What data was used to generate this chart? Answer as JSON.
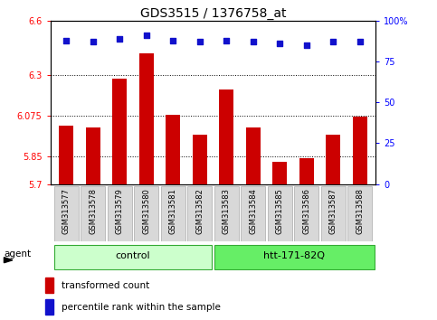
{
  "title": "GDS3515 / 1376758_at",
  "categories": [
    "GSM313577",
    "GSM313578",
    "GSM313579",
    "GSM313580",
    "GSM313581",
    "GSM313582",
    "GSM313583",
    "GSM313584",
    "GSM313585",
    "GSM313586",
    "GSM313587",
    "GSM313588"
  ],
  "bar_values": [
    6.02,
    6.01,
    6.28,
    6.42,
    6.08,
    5.97,
    6.22,
    6.01,
    5.82,
    5.84,
    5.97,
    6.07
  ],
  "percentile_values": [
    88,
    87,
    89,
    91,
    88,
    87,
    88,
    87,
    86,
    85,
    87,
    87
  ],
  "bar_color": "#cc0000",
  "dot_color": "#1111cc",
  "ylim_left": [
    5.7,
    6.6
  ],
  "ylim_right": [
    0,
    100
  ],
  "yticks_left": [
    5.7,
    5.85,
    6.075,
    6.3,
    6.6
  ],
  "ytick_labels_left": [
    "5.7",
    "5.85",
    "6.075",
    "6.3",
    "6.6"
  ],
  "yticks_right": [
    0,
    25,
    50,
    75,
    100
  ],
  "ytick_labels_right": [
    "0",
    "25",
    "50",
    "75",
    "100%"
  ],
  "hlines": [
    5.85,
    6.075,
    6.3
  ],
  "group1_label": "control",
  "group2_label": "htt-171-82Q",
  "agent_label": "agent",
  "legend_bar_label": "transformed count",
  "legend_dot_label": "percentile rank within the sample",
  "bar_width": 0.55,
  "group_box_color_light": "#ccffcc",
  "group_box_color_dark": "#66ee66",
  "group_border_color": "#33aa33",
  "tick_label_bg": "#d8d8d8",
  "tick_label_border": "#aaaaaa",
  "title_fontsize": 10,
  "tick_fontsize": 7,
  "legend_fontsize": 7.5
}
